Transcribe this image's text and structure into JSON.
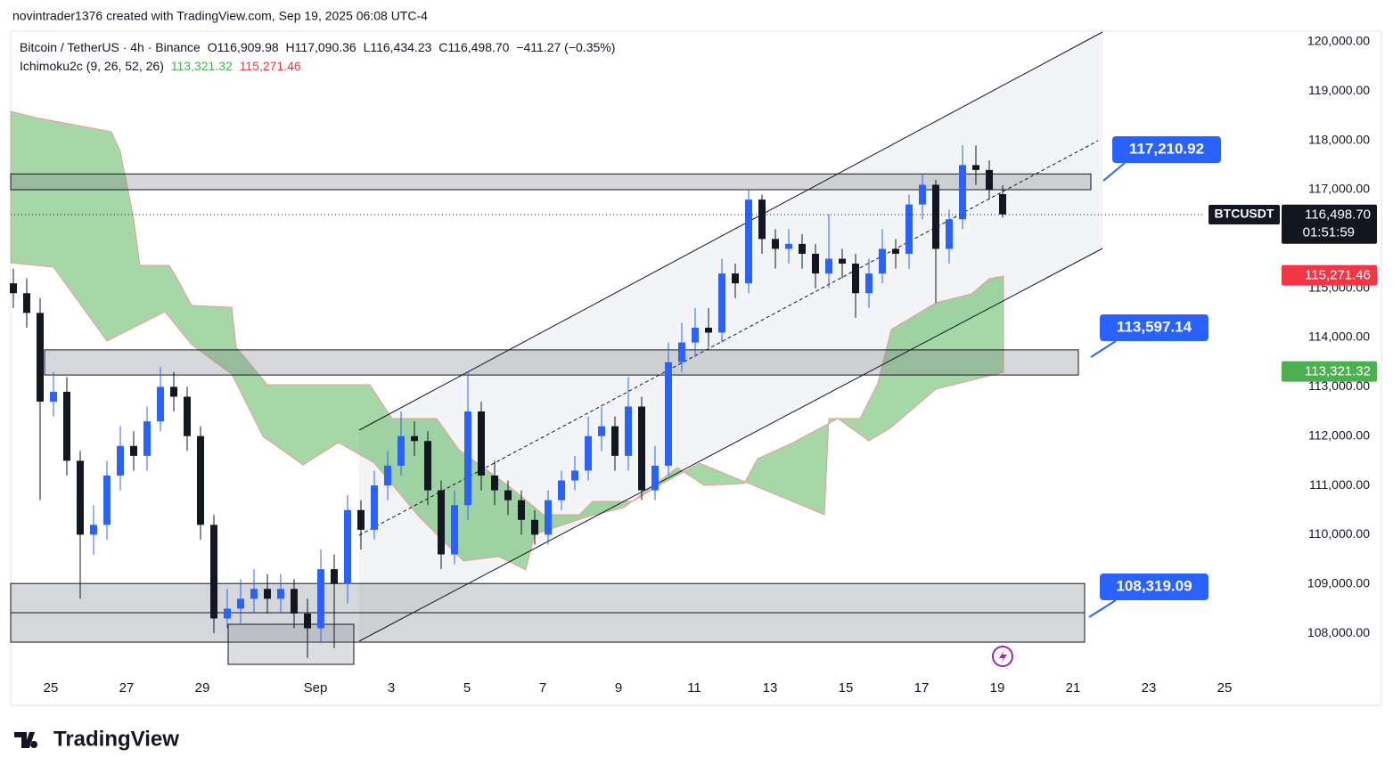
{
  "header": "novintrader1376 created with TradingView.com, Sep 19, 2025 06:08 UTC-4",
  "legend": {
    "symbol": "Bitcoin / TetherUS · 4h · Binance",
    "open": "O116,909.98",
    "high": "H117,090.36",
    "low": "L116,434.23",
    "close": "C116,498.70",
    "change": "−411.27 (−0.35%)"
  },
  "indicator": {
    "name": "Ichimoku2c (9, 26, 52, 26)",
    "value_a": "113,321.32",
    "value_b": "115,271.46"
  },
  "footer": "TradingView",
  "chart_data": {
    "type": "candlestick",
    "up_color": "#2962ff",
    "down_color": "#131722",
    "open": [
      115100,
      114900,
      114500,
      112700,
      112900,
      111500,
      110000,
      110200,
      111200,
      111800,
      111600,
      112300,
      113000,
      112800,
      112000,
      110200,
      108300,
      108500,
      108700,
      108900,
      108700,
      108900,
      108400,
      108100,
      109300,
      109000,
      110500,
      110100,
      111000,
      111400,
      112000,
      111900,
      110900,
      109600,
      110600,
      112500,
      111200,
      110900,
      110700,
      110300,
      110000,
      110700,
      111100,
      111300,
      112000,
      112200,
      111600,
      112600,
      110900,
      111400,
      113500,
      113900,
      114200,
      114100,
      115300,
      115100,
      116800,
      116000,
      115800,
      115900,
      115700,
      115300,
      115600,
      115500,
      114900,
      115300,
      115800,
      115700,
      116700,
      117100,
      115800,
      116400,
      117500,
      117400,
      116909.98
    ],
    "high": [
      115400,
      115200,
      114800,
      113300,
      113200,
      111700,
      110600,
      111500,
      112200,
      112100,
      112600,
      113400,
      113300,
      113000,
      112200,
      110400,
      108900,
      109100,
      109300,
      109200,
      109200,
      109100,
      108700,
      109700,
      109600,
      110800,
      110700,
      111300,
      111700,
      112500,
      112300,
      112100,
      111100,
      110900,
      113300,
      112700,
      111500,
      111100,
      110900,
      110500,
      110900,
      111300,
      111600,
      112400,
      112600,
      112400,
      113200,
      112800,
      111800,
      113900,
      114300,
      114600,
      114600,
      115600,
      115500,
      117000,
      116900,
      116200,
      116200,
      116100,
      115900,
      116500,
      115800,
      115700,
      115600,
      116200,
      116000,
      116900,
      117300,
      117200,
      116600,
      117900,
      117900,
      117600,
      117090.36
    ],
    "low": [
      114600,
      114200,
      110700,
      112400,
      111200,
      108700,
      109600,
      109900,
      110900,
      111300,
      111300,
      112100,
      112500,
      111700,
      109900,
      108000,
      108100,
      108200,
      108400,
      108400,
      108400,
      108100,
      107500,
      107800,
      107700,
      108600,
      109700,
      109900,
      110700,
      111200,
      111600,
      110600,
      109300,
      109400,
      110300,
      110900,
      110600,
      110400,
      110000,
      109800,
      109800,
      110500,
      110900,
      111100,
      111700,
      111300,
      111300,
      110700,
      110700,
      111200,
      113300,
      113600,
      113800,
      113900,
      114800,
      114900,
      115700,
      115400,
      115500,
      115400,
      115000,
      115000,
      115200,
      114400,
      114600,
      115100,
      115400,
      115400,
      116400,
      114700,
      115500,
      116200,
      117100,
      116800,
      116434.23
    ],
    "close": [
      114900,
      114500,
      112700,
      112900,
      111500,
      110000,
      110200,
      111200,
      111800,
      111600,
      112300,
      113000,
      112800,
      112000,
      110200,
      108300,
      108500,
      108700,
      108900,
      108700,
      108900,
      108400,
      108100,
      109300,
      109000,
      110500,
      110100,
      111000,
      111400,
      112000,
      111900,
      110900,
      109600,
      110600,
      112500,
      111200,
      110900,
      110700,
      110300,
      110000,
      110700,
      111100,
      111300,
      112000,
      112200,
      111600,
      112600,
      110900,
      111400,
      113500,
      113900,
      114200,
      114100,
      115300,
      115100,
      116800,
      116000,
      115800,
      115900,
      115700,
      115300,
      115600,
      115500,
      114900,
      115300,
      115800,
      115700,
      116700,
      117100,
      115800,
      116400,
      117500,
      117400,
      117000,
      116498.7
    ],
    "ylim": [
      107116,
      120217
    ],
    "yticks": [
      {
        "value": 108000,
        "label": "108,000.00"
      },
      {
        "value": 109000,
        "label": "109,000.00"
      },
      {
        "value": 110000,
        "label": "110,000.00"
      },
      {
        "value": 111000,
        "label": "111,000.00"
      },
      {
        "value": 112000,
        "label": "112,000.00"
      },
      {
        "value": 113000,
        "label": "113,000.00"
      },
      {
        "value": 114000,
        "label": "114,000.00"
      },
      {
        "value": 115000,
        "label": "115,000.00"
      },
      {
        "value": 116000,
        "label": "116,000.00"
      },
      {
        "value": 117000,
        "label": "117,000.00"
      },
      {
        "value": 118000,
        "label": "118,000.00"
      },
      {
        "value": 119000,
        "label": "119,000.00"
      },
      {
        "value": 120000,
        "label": "120,000.00"
      }
    ],
    "xticks": [
      "25",
      "27",
      "29",
      "Sep",
      "3",
      "5",
      "7",
      "9",
      "11",
      "13",
      "15",
      "17",
      "19",
      "21",
      "23",
      "25"
    ],
    "grid": false,
    "zones": [
      {
        "low": 117000,
        "high": 117320
      },
      {
        "low": 113240,
        "high": 113750
      },
      {
        "low": 107820,
        "high": 109010
      }
    ],
    "callouts": [
      "117,210.92",
      "113,597.14",
      "108,319.09"
    ],
    "price_tags": [
      {
        "value": 116498.7,
        "label": "116,498.70",
        "color": "#131722"
      },
      {
        "value": 115271.46,
        "label": "115,271.46",
        "color": "#f23645"
      },
      {
        "value": 113321.32,
        "label": "113,321.32",
        "color": "#4caf50"
      }
    ],
    "symbol_tag": "BTCUSDT",
    "countdown": "01:51:59"
  }
}
